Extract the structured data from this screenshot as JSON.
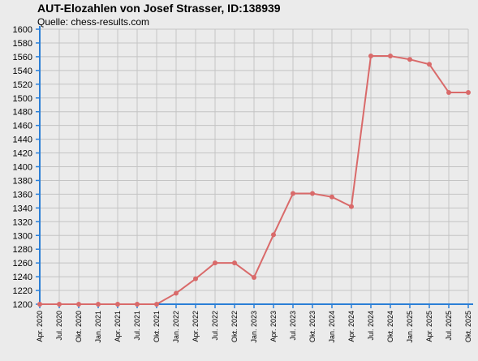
{
  "chart_data": {
    "type": "line",
    "title": "AUT-Elozahlen von Josef Strasser, ID:138939",
    "subtitle": "Quelle: chess-results.com",
    "xlabel": "",
    "ylabel": "",
    "ylim": [
      1200,
      1600
    ],
    "ytick_step": 20,
    "grid": true,
    "categories": [
      "Apr. 2020",
      "Jul. 2020",
      "Okt. 2020",
      "Jan. 2021",
      "Apr. 2021",
      "Jul. 2021",
      "Okt. 2021",
      "Jan. 2022",
      "Apr. 2022",
      "Jul. 2022",
      "Okt. 2022",
      "Jan. 2023",
      "Apr. 2023",
      "Jul. 2023",
      "Okt. 2023",
      "Jan. 2024",
      "Apr. 2024",
      "Jul. 2024",
      "Okt. 2024",
      "Jan. 2025",
      "Apr. 2025",
      "Jul. 2025",
      "Okt. 2025"
    ],
    "series": [
      {
        "values": [
          1200,
          1200,
          1200,
          1200,
          1200,
          1200,
          1200,
          1216,
          1237,
          1260,
          1260,
          1239,
          1301,
          1361,
          1361,
          1356,
          1342,
          1561,
          1561,
          1556,
          1549,
          1508,
          1508
        ]
      }
    ]
  },
  "colors": {
    "line": "#d96a6a",
    "axis": "#2b7fd6",
    "grid": "#c4c4c4",
    "background": "#ebebeb"
  }
}
